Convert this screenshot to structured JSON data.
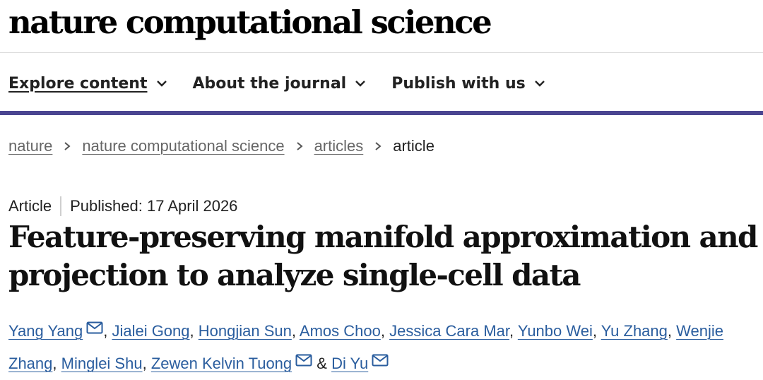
{
  "site": {
    "logo_text": "nature computational science"
  },
  "nav": {
    "items": [
      {
        "label": "Explore content",
        "active": true
      },
      {
        "label": "About the journal",
        "active": false
      },
      {
        "label": "Publish with us",
        "active": false
      }
    ],
    "accent_color": "#4a4591"
  },
  "breadcrumb": {
    "items": [
      "nature",
      "nature computational science",
      "articles",
      "article"
    ]
  },
  "article": {
    "type": "Article",
    "published": "Published: 17 April 2026",
    "title": "Feature-preserving manifold approximation and projection to analyze single-cell data",
    "link_color": "#2a5d9e",
    "authors": [
      {
        "name": "Yang Yang",
        "email_icon": true
      },
      {
        "name": "Jialei Gong",
        "email_icon": false
      },
      {
        "name": "Hongjian Sun",
        "email_icon": false
      },
      {
        "name": "Amos Choo",
        "email_icon": false
      },
      {
        "name": "Jessica Cara Mar",
        "email_icon": false
      },
      {
        "name": "Yunbo Wei",
        "email_icon": false
      },
      {
        "name": "Yu Zhang",
        "email_icon": false
      },
      {
        "name": "Wenjie Zhang",
        "email_icon": false
      },
      {
        "name": "Minglei Shu",
        "email_icon": false
      },
      {
        "name": "Zewen Kelvin Tuong",
        "email_icon": true
      },
      {
        "name": "Di Yu",
        "email_icon": true
      }
    ],
    "separator": ", ",
    "last_separator": " & ",
    "icon_names": {
      "email": "mail-icon",
      "chevron": "chevron-down-icon",
      "crumb": "chevron-right-icon"
    }
  }
}
